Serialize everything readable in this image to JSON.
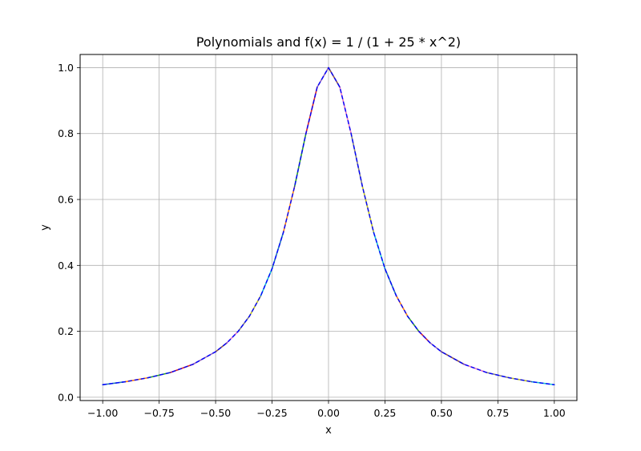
{
  "chart_data": {
    "type": "line",
    "title": "Polynomials and f(x) = 1 / (1 + 25 * x^2)",
    "xlabel": "x",
    "ylabel": "y",
    "xlim": [
      -1.1,
      1.1
    ],
    "ylim": [
      -0.01,
      1.04
    ],
    "xticks": [
      -1.0,
      -0.75,
      -0.5,
      -0.25,
      0.0,
      0.25,
      0.5,
      0.75,
      1.0
    ],
    "xtick_labels": [
      "−1.00",
      "−0.75",
      "−0.50",
      "−0.25",
      "0.00",
      "0.25",
      "0.50",
      "0.75",
      "1.00"
    ],
    "yticks": [
      0.0,
      0.2,
      0.4,
      0.6,
      0.8,
      1.0
    ],
    "ytick_labels": [
      "0.0",
      "0.2",
      "0.4",
      "0.6",
      "0.8",
      "1.0"
    ],
    "grid": true,
    "legend": "none",
    "segment_colors": [
      "#1f77b4",
      "#ff7f0e",
      "#2ca02c",
      "#d62728",
      "#9467bd",
      "#8c564b",
      "#e377c2",
      "#7f7f7f",
      "#bcbd22",
      "#17becf"
    ],
    "reference_color": "#0000ff",
    "series": [
      {
        "style": "piecewise-colored-polynomial-segments",
        "x": [
          -1.0,
          -0.9,
          -0.8,
          -0.7,
          -0.6,
          -0.5,
          -0.45,
          -0.4,
          -0.35,
          -0.3,
          -0.25,
          -0.2,
          -0.15,
          -0.1,
          -0.05,
          0.0,
          0.05,
          0.1,
          0.15,
          0.2,
          0.25,
          0.3,
          0.35,
          0.4,
          0.45,
          0.5,
          0.6,
          0.7,
          0.8,
          0.9,
          1.0
        ],
        "y": [
          0.038,
          0.047,
          0.059,
          0.075,
          0.1,
          0.138,
          0.165,
          0.2,
          0.246,
          0.308,
          0.39,
          0.5,
          0.64,
          0.8,
          0.941,
          1.0,
          0.941,
          0.8,
          0.64,
          0.5,
          0.39,
          0.308,
          0.246,
          0.2,
          0.165,
          0.138,
          0.1,
          0.075,
          0.059,
          0.047,
          0.038
        ]
      },
      {
        "style": "dashed-reference-function",
        "x": [
          -1.0,
          -0.9,
          -0.8,
          -0.7,
          -0.6,
          -0.5,
          -0.45,
          -0.4,
          -0.35,
          -0.3,
          -0.25,
          -0.2,
          -0.15,
          -0.1,
          -0.05,
          0.0,
          0.05,
          0.1,
          0.15,
          0.2,
          0.25,
          0.3,
          0.35,
          0.4,
          0.45,
          0.5,
          0.6,
          0.7,
          0.8,
          0.9,
          1.0
        ],
        "y": [
          0.038,
          0.047,
          0.059,
          0.075,
          0.1,
          0.138,
          0.165,
          0.2,
          0.246,
          0.308,
          0.39,
          0.5,
          0.64,
          0.8,
          0.941,
          1.0,
          0.941,
          0.8,
          0.64,
          0.5,
          0.39,
          0.308,
          0.246,
          0.2,
          0.165,
          0.138,
          0.1,
          0.075,
          0.059,
          0.047,
          0.038
        ]
      }
    ]
  }
}
